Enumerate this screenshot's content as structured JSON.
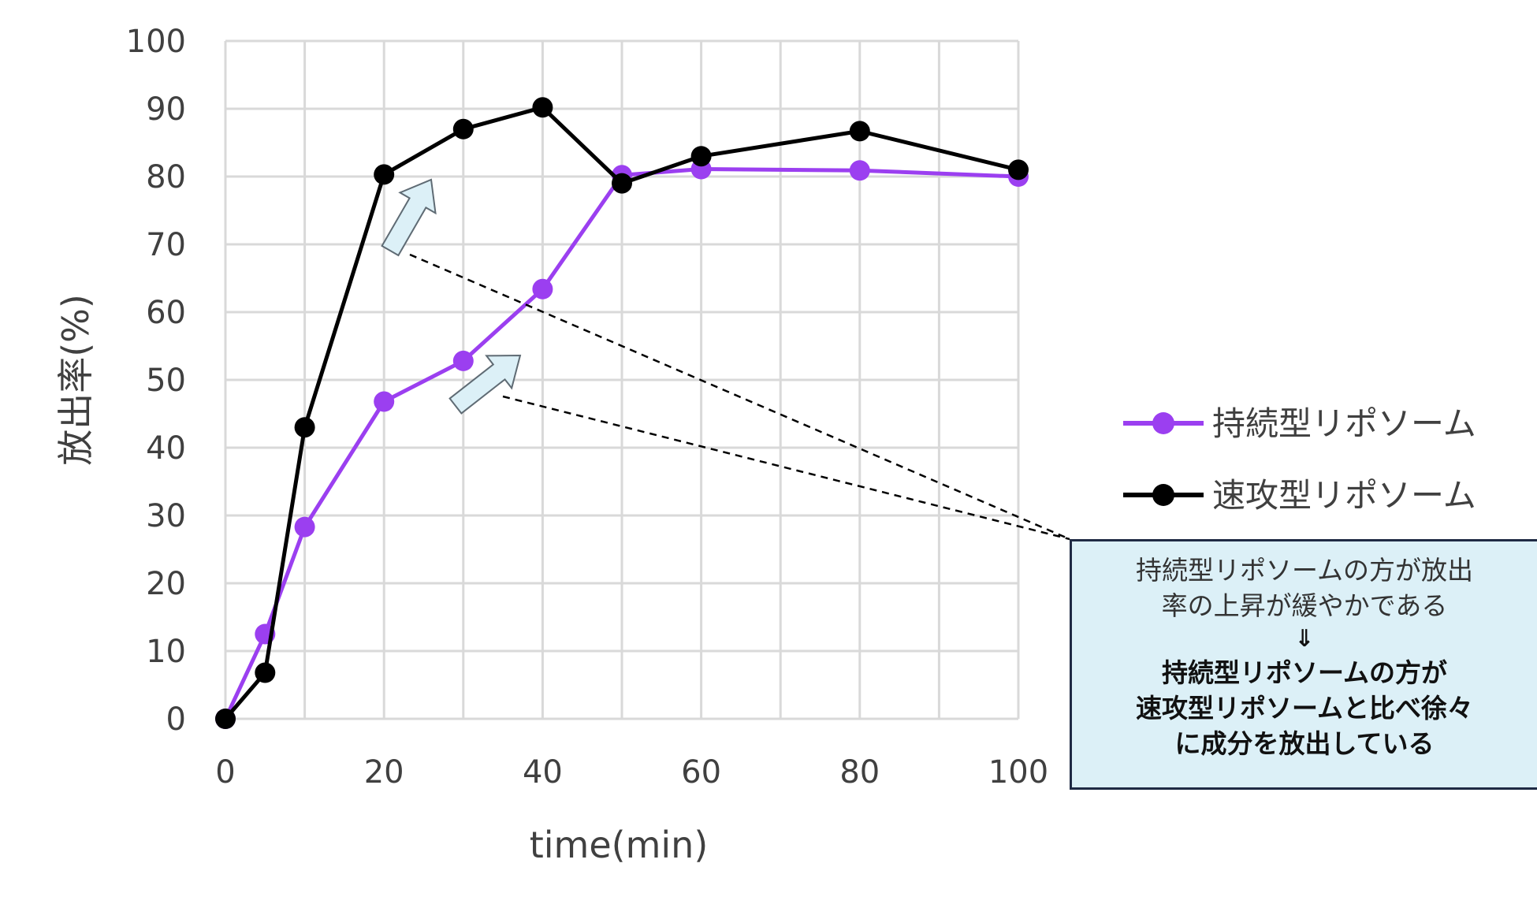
{
  "chart_data": {
    "type": "line",
    "title": "",
    "xlabel": "time(min)",
    "ylabel": "放出率(%)",
    "xlim": [
      0,
      100
    ],
    "ylim": [
      0,
      100
    ],
    "x_ticks": [
      "0",
      "20",
      "40",
      "60",
      "80",
      "100"
    ],
    "y_ticks": [
      "0",
      "10",
      "20",
      "30",
      "40",
      "50",
      "60",
      "70",
      "80",
      "90",
      "100"
    ],
    "grid": true,
    "legend_position": "right",
    "series": [
      {
        "name": "持続型リポソーム",
        "color": "#9b3ff0",
        "x": [
          0,
          5,
          10,
          20,
          30,
          40,
          50,
          60,
          80,
          100
        ],
        "y": [
          0,
          12.5,
          28.3,
          46.8,
          52.8,
          63.4,
          80.2,
          81.1,
          80.9,
          80.0
        ]
      },
      {
        "name": "速攻型リポソーム",
        "color": "#000000",
        "x": [
          0,
          5,
          10,
          20,
          30,
          40,
          50,
          60,
          80,
          100
        ],
        "y": [
          0,
          6.8,
          43.0,
          80.3,
          87.0,
          90.2,
          79.0,
          83.0,
          86.7,
          81.0
        ]
      }
    ],
    "annotation": {
      "line1": "持続型リポソームの方が放出",
      "line2": "率の上昇が緩やかである",
      "arrow": "⇓",
      "line3": "持続型リポソームの方が",
      "line4": "速攻型リポソームと比べ徐々",
      "line5": "に成分を放出している"
    }
  }
}
